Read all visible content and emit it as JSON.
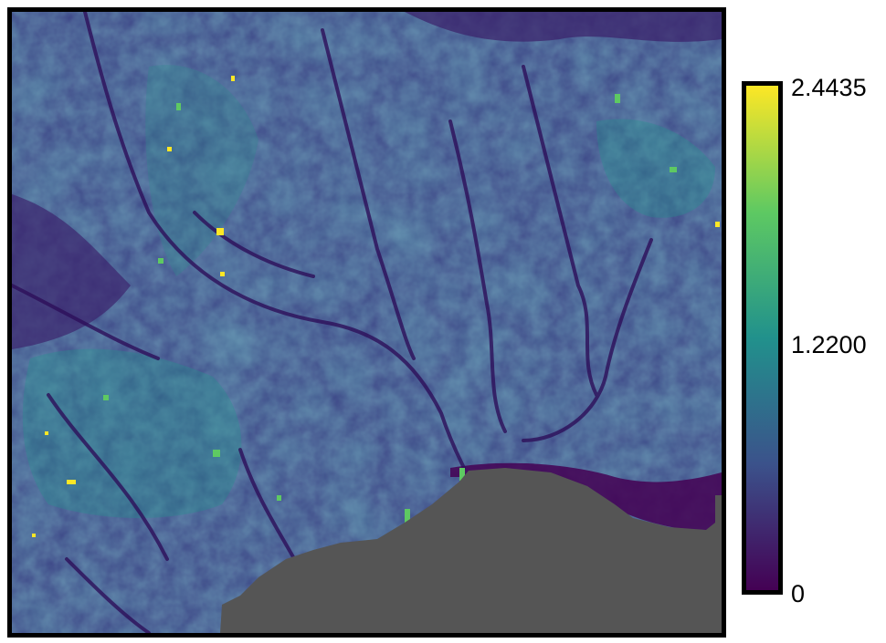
{
  "map": {
    "type": "raster-heatmap",
    "colormap": "viridis",
    "nodata_color": "#555555",
    "colormap_stops": [
      "#440154",
      "#3b528b",
      "#21918c",
      "#5ec962",
      "#fde725"
    ],
    "value_range": [
      0,
      2.4435
    ]
  },
  "colorbar": {
    "tick_max": "2.4435",
    "tick_mid": "1.2200",
    "tick_min": "0"
  }
}
